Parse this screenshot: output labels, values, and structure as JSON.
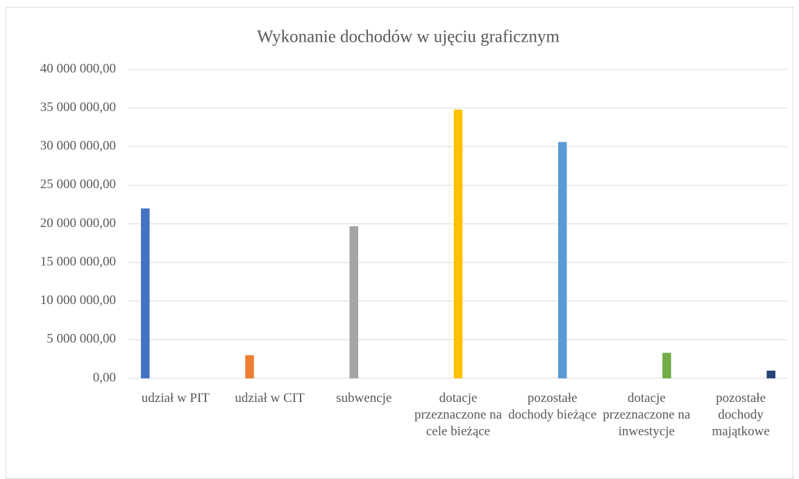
{
  "chart_data": {
    "type": "bar",
    "title": "Wykonanie dochodów w ujęciu graficznym",
    "categories": [
      "udział w PIT",
      "udział w CIT",
      "subwencje",
      "dotacje przeznaczone na cele bieżące",
      "pozostałe dochody bieżące",
      "dotacje przeznaczone na inwestycje",
      "pozostałe dochody majątkowe"
    ],
    "values": [
      22000000,
      3000000,
      19700000,
      34800000,
      30600000,
      3300000,
      1000000
    ],
    "colors": [
      "#4472c4",
      "#ed7d31",
      "#a5a5a5",
      "#ffc000",
      "#5b9bd5",
      "#70ad47",
      "#264478"
    ],
    "ylim": [
      0,
      40000000
    ],
    "yticks": [
      {
        "value": 0,
        "label": "0,00"
      },
      {
        "value": 5000000,
        "label": "5 000 000,00"
      },
      {
        "value": 10000000,
        "label": "10 000 000,00"
      },
      {
        "value": 15000000,
        "label": "15 000 000,00"
      },
      {
        "value": 20000000,
        "label": "20 000 000,00"
      },
      {
        "value": 25000000,
        "label": "25 000 000,00"
      },
      {
        "value": 30000000,
        "label": "30 000 000,00"
      },
      {
        "value": 35000000,
        "label": "35 000 000,00"
      },
      {
        "value": 40000000,
        "label": "40 000 000,00"
      }
    ],
    "grid": true
  }
}
